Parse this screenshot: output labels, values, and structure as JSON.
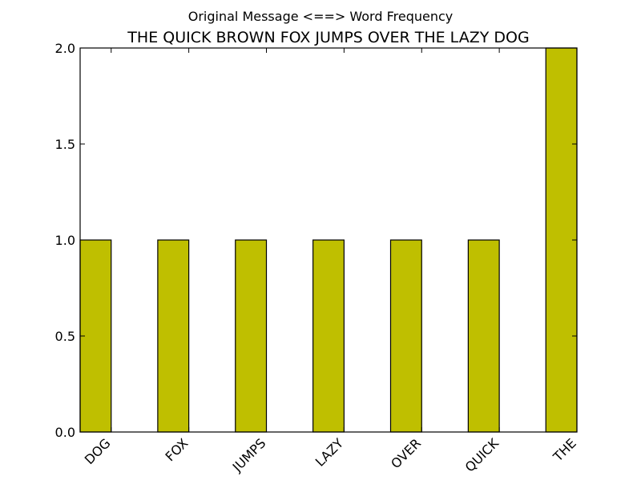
{
  "chart_data": {
    "type": "bar",
    "suptitle": "Original Message <==> Word Frequency",
    "title": "THE QUICK BROWN FOX JUMPS OVER THE LAZY DOG",
    "xlabel": "",
    "ylabel": "",
    "categories": [
      "DOG",
      "FOX",
      "JUMPS",
      "LAZY",
      "OVER",
      "QUICK",
      "THE"
    ],
    "values": [
      1,
      1,
      1,
      1,
      1,
      1,
      2
    ],
    "ylim": [
      0,
      2.0
    ],
    "yticks": [
      "0.0",
      "0.5",
      "1.0",
      "1.5",
      "2.0"
    ],
    "bar_color": "#bfbf00",
    "grid": false,
    "legend": "none"
  }
}
